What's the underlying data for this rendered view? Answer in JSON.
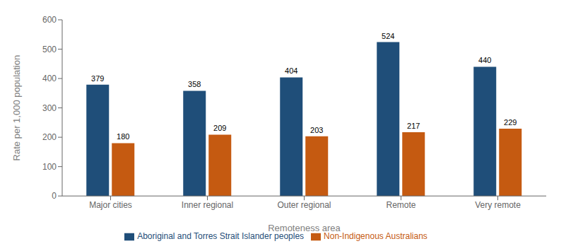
{
  "chart_data": {
    "type": "bar",
    "categories": [
      "Major cities",
      "Inner regional",
      "Outer regional",
      "Remote",
      "Very remote"
    ],
    "series": [
      {
        "name": "Aboriginal and Torres Strait Islander peoples",
        "color": "#1F4E79",
        "values": [
          379,
          358,
          404,
          524,
          440
        ]
      },
      {
        "name": "Non-Indigenous Australians",
        "color": "#C55A11",
        "values": [
          180,
          209,
          203,
          217,
          229
        ]
      }
    ],
    "xlabel": "Remoteness area",
    "ylabel": "Rate per 1,000 population",
    "ylim": [
      0,
      600
    ],
    "yticks": [
      0,
      100,
      200,
      300,
      400,
      500,
      600
    ],
    "data_labels": true,
    "legend": "bottom",
    "grid": false
  }
}
